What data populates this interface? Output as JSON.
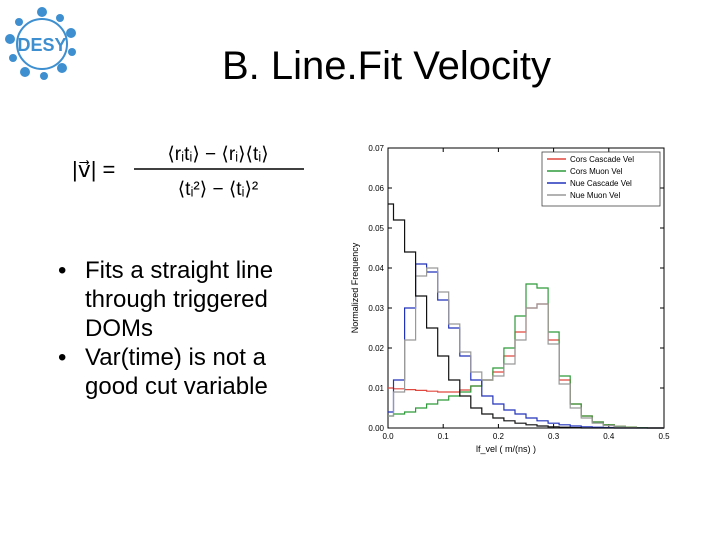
{
  "slide": {
    "title": "B. Line.Fit Velocity",
    "logo_text": "DESY",
    "formula": {
      "lhs": "|v⃗| =",
      "numerator": "⟨rᵢtᵢ⟩ − ⟨rᵢ⟩⟨tᵢ⟩",
      "denominator": "⟨tᵢ²⟩ − ⟨tᵢ⟩²"
    },
    "bullets": [
      "Fits a straight line through triggered DOMs",
      "Var(time) is not a good cut variable"
    ]
  },
  "colors": {
    "logo_blue": "#3d8fd0",
    "cors_cascade": "#e0483f",
    "cors_muon": "#2f9a3a",
    "nue_cascade": "#2233bb",
    "nue_muon": "#999999",
    "black_curve": "#111111"
  },
  "chart_data": {
    "type": "line",
    "xlabel": "lf_vel ( m/(ns) )",
    "ylabel": "Normalized Frequency",
    "xlim": [
      0.0,
      0.5
    ],
    "ylim": [
      0.0,
      0.07
    ],
    "xticks": [
      "0.0",
      "0.1",
      "0.2",
      "0.3",
      "0.4",
      "0.5"
    ],
    "yticks": [
      "0.00",
      "0.01",
      "0.02",
      "0.03",
      "0.04",
      "0.05",
      "0.06",
      "0.07"
    ],
    "legend_position": "top-right",
    "grid": false,
    "x": [
      0.0,
      0.02,
      0.04,
      0.06,
      0.08,
      0.1,
      0.12,
      0.14,
      0.16,
      0.18,
      0.2,
      0.22,
      0.24,
      0.26,
      0.28,
      0.3,
      0.32,
      0.34,
      0.36,
      0.38,
      0.4,
      0.42,
      0.44,
      0.46,
      0.48,
      0.5
    ],
    "series": [
      {
        "name": "Cors Cascade Vel",
        "color": "#e0483f",
        "values": [
          0.01,
          0.0098,
          0.0096,
          0.0094,
          0.0092,
          0.009,
          0.009,
          0.0095,
          0.0105,
          0.012,
          0.014,
          0.018,
          0.024,
          0.03,
          0.031,
          0.022,
          0.012,
          0.006,
          0.003,
          0.0015,
          0.0008,
          0.0004,
          0.0002,
          0.0001,
          0.0,
          0.0
        ]
      },
      {
        "name": "Cors Muon Vel",
        "color": "#2f9a3a",
        "values": [
          0.003,
          0.0035,
          0.004,
          0.005,
          0.006,
          0.007,
          0.008,
          0.009,
          0.0105,
          0.012,
          0.015,
          0.02,
          0.028,
          0.036,
          0.035,
          0.024,
          0.013,
          0.006,
          0.003,
          0.0015,
          0.0008,
          0.0004,
          0.0002,
          0.0001,
          0.0,
          0.0
        ]
      },
      {
        "name": "Nue Cascade Vel",
        "color": "#2233bb",
        "values": [
          0.004,
          0.012,
          0.03,
          0.041,
          0.039,
          0.032,
          0.025,
          0.018,
          0.012,
          0.008,
          0.006,
          0.0045,
          0.0035,
          0.0025,
          0.0018,
          0.0012,
          0.0008,
          0.0005,
          0.0003,
          0.0002,
          0.0001,
          0.0,
          0.0,
          0.0,
          0.0,
          0.0
        ]
      },
      {
        "name": "Nue Muon Vel",
        "color": "#999999",
        "values": [
          0.003,
          0.009,
          0.022,
          0.038,
          0.04,
          0.034,
          0.026,
          0.019,
          0.014,
          0.012,
          0.013,
          0.016,
          0.022,
          0.03,
          0.031,
          0.021,
          0.011,
          0.005,
          0.0025,
          0.0012,
          0.0006,
          0.0003,
          0.0001,
          0.0,
          0.0,
          0.0
        ]
      },
      {
        "color": "#111111",
        "values": [
          0.056,
          0.052,
          0.044,
          0.033,
          0.025,
          0.018,
          0.012,
          0.008,
          0.005,
          0.0035,
          0.0025,
          0.0018,
          0.0012,
          0.0008,
          0.0005,
          0.0003,
          0.0002,
          0.0001,
          0.0,
          0.0,
          0.0,
          0.0,
          0.0,
          0.0,
          0.0,
          0.0
        ]
      }
    ]
  }
}
